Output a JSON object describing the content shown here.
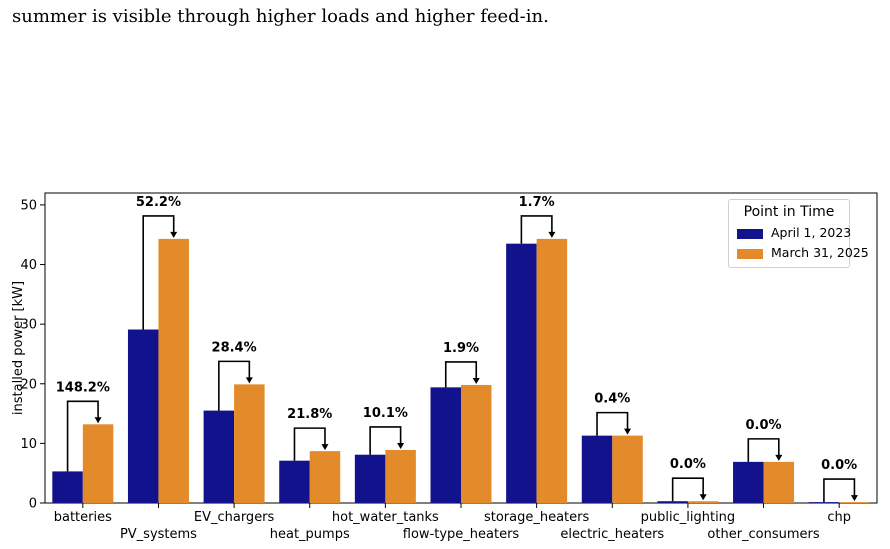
{
  "caption": "summer is visible through higher loads and higher feed-in.",
  "colors": {
    "series1": "#12128c",
    "series2": "#e38b2a"
  },
  "legend": {
    "title": "Point in Time"
  },
  "chart_data": {
    "type": "bar",
    "title": "",
    "xlabel": "",
    "ylabel": "installed power [kW]",
    "ylim": [
      0,
      52
    ],
    "yticks": [
      0,
      10,
      20,
      30,
      40,
      50
    ],
    "grid": false,
    "legend_position": "top-right",
    "categories": [
      "batteries",
      "PV_systems",
      "EV_chargers",
      "heat_pumps",
      "hot_water_tanks",
      "flow-type_heaters",
      "storage_heaters",
      "electric_heaters",
      "public_lighting",
      "other_consumers",
      "chp"
    ],
    "series": [
      {
        "name": "April 1, 2023",
        "values": [
          5.3,
          29.1,
          15.5,
          7.1,
          8.1,
          19.4,
          43.5,
          11.3,
          0.3,
          6.9,
          0.15
        ]
      },
      {
        "name": "March 31, 2025",
        "values": [
          13.2,
          44.3,
          19.9,
          8.7,
          8.9,
          19.8,
          44.3,
          11.3,
          0.3,
          6.9,
          0.15
        ]
      }
    ],
    "annotations": [
      "148.2%",
      "52.2%",
      "28.4%",
      "21.8%",
      "10.1%",
      "1.9%",
      "1.7%",
      "0.4%",
      "0.0%",
      "0.0%",
      "0.0%"
    ]
  }
}
